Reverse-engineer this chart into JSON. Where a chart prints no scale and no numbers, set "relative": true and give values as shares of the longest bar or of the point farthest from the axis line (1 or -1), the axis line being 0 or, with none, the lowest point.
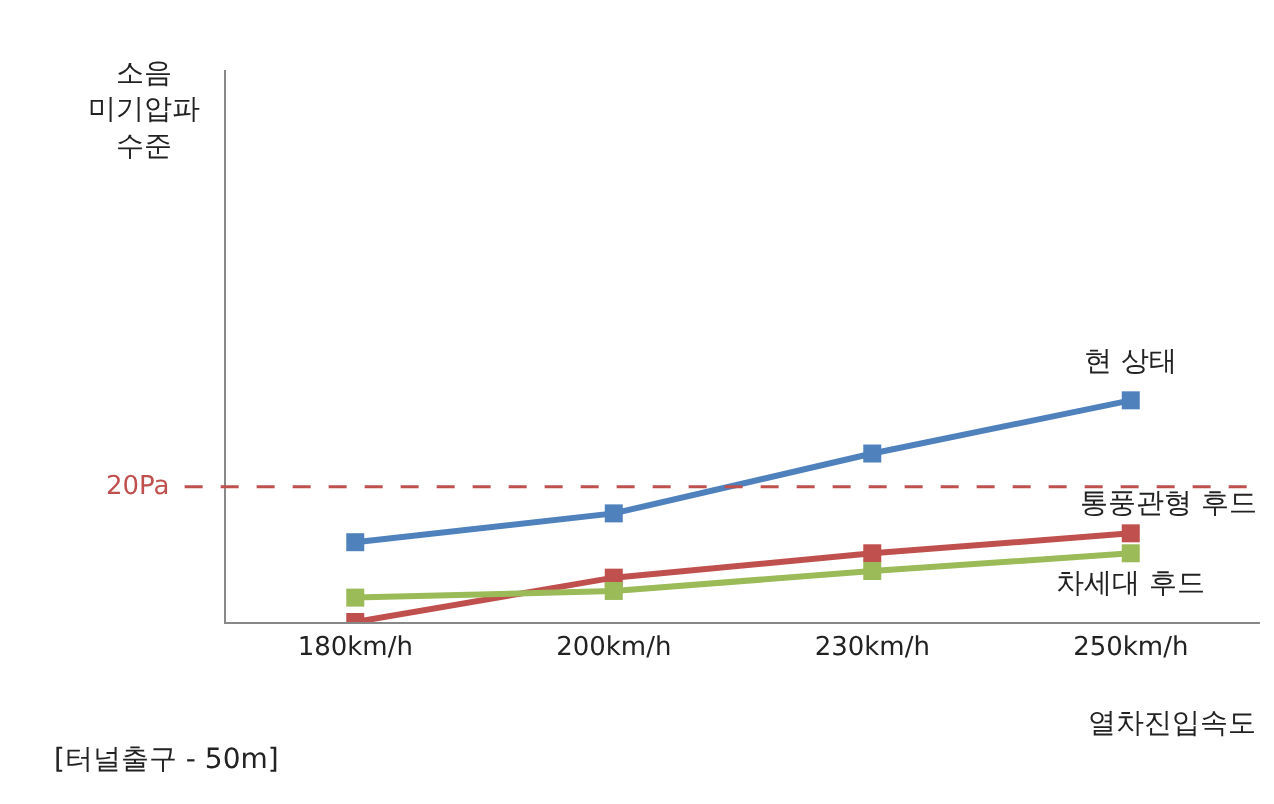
{
  "chart_data": {
    "type": "line",
    "relative": true,
    "xlabel": "열차진입속도",
    "categories": [
      "180km/h",
      "200km/h",
      "230km/h",
      "250km/h"
    ],
    "series": [
      {
        "name": "현 상태",
        "color": "#4f81bd",
        "values": [
          0.36,
          0.49,
          0.76,
          1
        ]
      },
      {
        "name": "통풍관형 후드",
        "color": "#c0504d",
        "values": [
          0,
          0.2,
          0.31,
          0.4
        ]
      },
      {
        "name": "차세대 후드",
        "color": "#9bbb59",
        "values": [
          0.11,
          0.14,
          0.23,
          0.31
        ]
      }
    ],
    "ref_lines": [
      {
        "axis": "y",
        "value": 0.61,
        "label": "20Pa",
        "color": "#c0504d",
        "line_style": "dashed"
      }
    ],
    "annotations": [
      "소음\n미기압파\n수준",
      "[터널출구 - 50m]"
    ],
    "marker": "square",
    "line_style": "solid",
    "legend": false
  }
}
